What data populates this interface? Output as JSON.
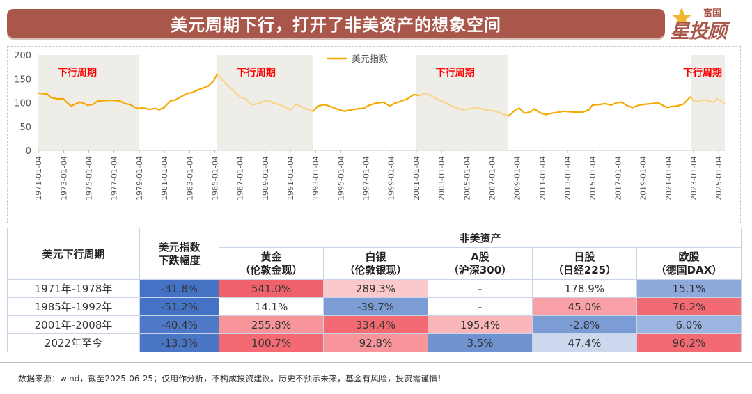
{
  "header": {
    "title": "美元周期下行，打开了非美资产的想象空间"
  },
  "logo": {
    "small": "富国",
    "big": "星投顾"
  },
  "chart_data": {
    "type": "line",
    "legend": "美元指数",
    "legend_position": "top-center",
    "ylim": [
      0,
      200
    ],
    "yticks": [
      "0",
      "50",
      "100",
      "150",
      "200"
    ],
    "xticks": [
      "1971-01-04",
      "1973-01-04",
      "1975-01-04",
      "1977-01-04",
      "1979-01-04",
      "1981-01-04",
      "1983-01-04",
      "1985-01-04",
      "1987-01-04",
      "1989-01-04",
      "1991-01-04",
      "1993-01-04",
      "1995-01-04",
      "1997-01-04",
      "1999-01-04",
      "2001-01-04",
      "2003-01-04",
      "2005-01-04",
      "2007-01-04",
      "2009-01-04",
      "2011-01-04",
      "2013-01-04",
      "2015-01-04",
      "2017-01-04",
      "2019-01-04",
      "2021-01-04",
      "2023-01-04",
      "2025-01-04"
    ],
    "shaded_periods": [
      {
        "label": "下行周期",
        "start": 1971.0,
        "end": 1979.0
      },
      {
        "label": "下行周期",
        "start": 1985.2,
        "end": 1992.8
      },
      {
        "label": "下行周期",
        "start": 2001.0,
        "end": 2008.3
      },
      {
        "label": "下行周期",
        "start": 2022.8,
        "end": 2025.5
      }
    ],
    "series": [
      {
        "name": "美元指数",
        "color": "#f5a800",
        "faded_color": "#f8d58a",
        "points": [
          [
            1971.0,
            120
          ],
          [
            1971.7,
            118
          ],
          [
            1972.0,
            111
          ],
          [
            1972.5,
            108
          ],
          [
            1973.0,
            108
          ],
          [
            1973.3,
            100
          ],
          [
            1973.6,
            93
          ],
          [
            1973.9,
            97
          ],
          [
            1974.3,
            101
          ],
          [
            1974.6,
            99
          ],
          [
            1974.9,
            95
          ],
          [
            1975.3,
            96
          ],
          [
            1975.7,
            103
          ],
          [
            1976.0,
            104
          ],
          [
            1976.5,
            105
          ],
          [
            1977.0,
            105
          ],
          [
            1977.5,
            103
          ],
          [
            1977.9,
            98
          ],
          [
            1978.3,
            96
          ],
          [
            1978.6,
            91
          ],
          [
            1978.9,
            88
          ],
          [
            1979.3,
            89
          ],
          [
            1979.8,
            86
          ],
          [
            1980.3,
            88
          ],
          [
            1980.6,
            85
          ],
          [
            1981.0,
            90
          ],
          [
            1981.5,
            104
          ],
          [
            1981.9,
            106
          ],
          [
            1982.3,
            112
          ],
          [
            1982.8,
            119
          ],
          [
            1983.2,
            121
          ],
          [
            1983.6,
            126
          ],
          [
            1984.0,
            130
          ],
          [
            1984.5,
            135
          ],
          [
            1984.9,
            145
          ],
          [
            1985.2,
            160
          ],
          [
            1985.5,
            150
          ],
          [
            1986.0,
            138
          ],
          [
            1986.5,
            125
          ],
          [
            1987.0,
            112
          ],
          [
            1987.5,
            108
          ],
          [
            1987.9,
            96
          ],
          [
            1988.3,
            97
          ],
          [
            1988.7,
            101
          ],
          [
            1989.2,
            105
          ],
          [
            1989.6,
            100
          ],
          [
            1990.0,
            97
          ],
          [
            1990.5,
            92
          ],
          [
            1991.0,
            85
          ],
          [
            1991.5,
            97
          ],
          [
            1992.0,
            90
          ],
          [
            1992.4,
            86
          ],
          [
            1992.8,
            82
          ],
          [
            1993.2,
            93
          ],
          [
            1993.7,
            96
          ],
          [
            1994.2,
            92
          ],
          [
            1994.8,
            86
          ],
          [
            1995.3,
            82
          ],
          [
            1995.8,
            85
          ],
          [
            1996.3,
            87
          ],
          [
            1996.8,
            88
          ],
          [
            1997.3,
            95
          ],
          [
            1997.8,
            99
          ],
          [
            1998.4,
            101
          ],
          [
            1998.9,
            93
          ],
          [
            1999.3,
            99
          ],
          [
            1999.8,
            103
          ],
          [
            2000.3,
            108
          ],
          [
            2000.8,
            117
          ],
          [
            2001.3,
            115
          ],
          [
            2001.7,
            120
          ],
          [
            2002.0,
            117
          ],
          [
            2002.5,
            110
          ],
          [
            2002.9,
            104
          ],
          [
            2003.3,
            100
          ],
          [
            2003.8,
            93
          ],
          [
            2004.2,
            89
          ],
          [
            2004.7,
            85
          ],
          [
            2005.2,
            87
          ],
          [
            2005.8,
            90
          ],
          [
            2006.3,
            86
          ],
          [
            2006.8,
            84
          ],
          [
            2007.3,
            82
          ],
          [
            2007.8,
            77
          ],
          [
            2008.3,
            72
          ],
          [
            2008.6,
            78
          ],
          [
            2008.9,
            86
          ],
          [
            2009.2,
            88
          ],
          [
            2009.6,
            78
          ],
          [
            2010.0,
            80
          ],
          [
            2010.4,
            87
          ],
          [
            2010.8,
            79
          ],
          [
            2011.3,
            75
          ],
          [
            2011.8,
            78
          ],
          [
            2012.3,
            80
          ],
          [
            2012.7,
            82
          ],
          [
            2013.2,
            81
          ],
          [
            2013.7,
            80
          ],
          [
            2014.2,
            80
          ],
          [
            2014.7,
            85
          ],
          [
            2015.0,
            95
          ],
          [
            2015.5,
            96
          ],
          [
            2016.0,
            98
          ],
          [
            2016.5,
            95
          ],
          [
            2016.9,
            100
          ],
          [
            2017.3,
            101
          ],
          [
            2017.8,
            93
          ],
          [
            2018.2,
            90
          ],
          [
            2018.7,
            95
          ],
          [
            2019.2,
            97
          ],
          [
            2019.7,
            98
          ],
          [
            2020.2,
            100
          ],
          [
            2020.6,
            94
          ],
          [
            2020.9,
            90
          ],
          [
            2021.3,
            92
          ],
          [
            2021.7,
            93
          ],
          [
            2022.2,
            97
          ],
          [
            2022.5,
            105
          ],
          [
            2022.8,
            113
          ],
          [
            2023.0,
            104
          ],
          [
            2023.4,
            102
          ],
          [
            2023.8,
            106
          ],
          [
            2024.2,
            104
          ],
          [
            2024.6,
            101
          ],
          [
            2024.9,
            108
          ],
          [
            2025.2,
            104
          ],
          [
            2025.5,
            98
          ]
        ]
      }
    ]
  },
  "table": {
    "col_period": "美元下行周期",
    "col_decline": "美元指数\n下跌幅度",
    "group_header": "非美资产",
    "assets": [
      "黄金\n（伦敦金现）",
      "白银\n（伦敦银现）",
      "A股\n（沪深300）",
      "日股\n（日经225）",
      "欧股\n（德国DAX）"
    ],
    "rows": [
      {
        "period": "1971年-1978年",
        "decline": "-31.8%",
        "values": [
          "541.0%",
          "289.3%",
          "-",
          "178.9%",
          "15.1%"
        ],
        "colors": [
          "#4472c4",
          "#f0626b",
          "#fbc8cc",
          "#ffffff",
          "#ffffff",
          "#8ea9db"
        ]
      },
      {
        "period": "1985年-1992年",
        "decline": "-51.2%",
        "values": [
          "14.1%",
          "-39.7%",
          "-",
          "45.0%",
          "76.2%"
        ],
        "colors": [
          "#4472c4",
          "#ffffff",
          "#7b9cd4",
          "#ffffff",
          "#f9a1a6",
          "#f36a72"
        ]
      },
      {
        "period": "2001年-2008年",
        "decline": "-40.4%",
        "values": [
          "255.8%",
          "334.4%",
          "195.4%",
          "-2.8%",
          "6.0%"
        ],
        "colors": [
          "#4d79c8",
          "#f7959b",
          "#f36a72",
          "#fbb6ba",
          "#7b9cd4",
          "#9cb4e0"
        ]
      },
      {
        "period": "2022年至今",
        "decline": "-13.3%",
        "values": [
          "100.7%",
          "92.8%",
          "3.5%",
          "47.4%",
          "96.2%"
        ],
        "colors": [
          "#4a76c6",
          "#f36a72",
          "#f7959b",
          "#6f93d1",
          "#cdd8ee",
          "#f36a72"
        ]
      }
    ]
  },
  "footer": {
    "note": "数据来源：wind，截至2025-06-25；仅用作分析，不构成投资建议。历史不预示未来，基金有风险，投资需谨慎！"
  }
}
